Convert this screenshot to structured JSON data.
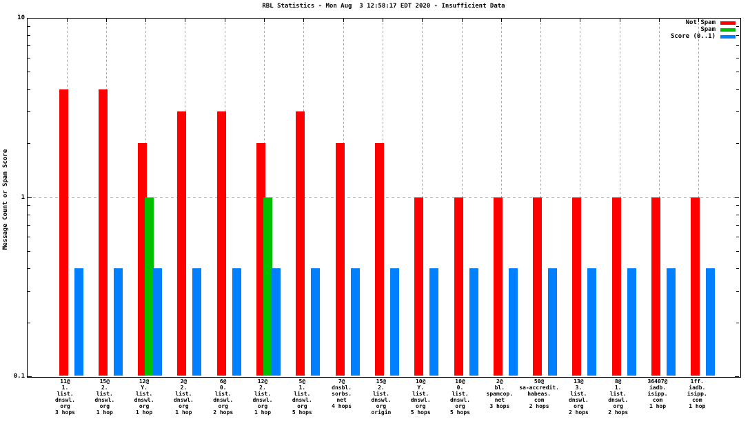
{
  "chart_data": {
    "type": "bar",
    "title": "RBL Statistics - Mon Aug  3 12:58:17 EDT 2020 - Insufficient Data",
    "ylabel": "Message Count or Spam Score",
    "xlabel": "",
    "yscale": "log",
    "ylim": [
      0.1,
      10
    ],
    "grid": true,
    "legend_position": "top-right",
    "ytics": [
      {
        "value": 0.1,
        "label": "0.1"
      },
      {
        "value": 1,
        "label": "1"
      },
      {
        "value": 10,
        "label": "10"
      }
    ],
    "yminortics": [
      0.2,
      0.3,
      0.4,
      0.5,
      0.6,
      0.7,
      0.8,
      0.9,
      2,
      3,
      4,
      5,
      6,
      7,
      8,
      9
    ],
    "legend": [
      {
        "label": "Not Spam",
        "color": "#ff0000"
      },
      {
        "label": "Spam",
        "color": "#00c000"
      },
      {
        "label": "Score (0..1)",
        "color": "#0080ff"
      }
    ],
    "categories": [
      [
        "11@",
        "1.",
        "list.",
        "dnswl.",
        "org",
        "3 hops"
      ],
      [
        "15@",
        "2.",
        "list.",
        "dnswl.",
        "org",
        "1 hop"
      ],
      [
        "12@",
        "Y.",
        "list.",
        "dnswl.",
        "org",
        "1 hop"
      ],
      [
        "2@",
        "2.",
        "list.",
        "dnswl.",
        "org",
        "1 hop"
      ],
      [
        "6@",
        "0.",
        "list.",
        "dnswl.",
        "org",
        "2 hops"
      ],
      [
        "12@",
        "2.",
        "list.",
        "dnswl.",
        "org",
        "1 hop"
      ],
      [
        "5@",
        "1.",
        "list.",
        "dnswl.",
        "org",
        "5 hops"
      ],
      [
        "7@",
        "dnsbl.",
        "sorbs.",
        "net",
        "4 hops"
      ],
      [
        "15@",
        "2.",
        "list.",
        "dnswl.",
        "org",
        "origin"
      ],
      [
        "10@",
        "Y.",
        "list.",
        "dnswl.",
        "org",
        "5 hops"
      ],
      [
        "10@",
        "0.",
        "list.",
        "dnswl.",
        "org",
        "5 hops"
      ],
      [
        "2@",
        "bl.",
        "spamcop.",
        "net",
        "3 hops"
      ],
      [
        "50@",
        "sa-accredit.",
        "habeas.",
        "com",
        "2 hops"
      ],
      [
        "13@",
        "3.",
        "list.",
        "dnswl.",
        "org",
        "2 hops"
      ],
      [
        "8@",
        "1.",
        "list.",
        "dnswl.",
        "org",
        "2 hops"
      ],
      [
        "36407@",
        "iadb.",
        "isipp.",
        "com",
        "1 hop"
      ],
      [
        "1ff.",
        "iadb.",
        "isipp.",
        "com",
        "1 hop"
      ]
    ],
    "series": [
      {
        "name": "Not Spam",
        "color": "#ff0000",
        "values": [
          4,
          4,
          2,
          3,
          3,
          2,
          3,
          2,
          2,
          1,
          1,
          1,
          1,
          1,
          1,
          1,
          1
        ]
      },
      {
        "name": "Spam",
        "color": "#00c000",
        "values": [
          0,
          0,
          1,
          0,
          0,
          1,
          0,
          0,
          0,
          0,
          0,
          0,
          0,
          0,
          0,
          0,
          0
        ]
      },
      {
        "name": "Score (0..1)",
        "color": "#0080ff",
        "values": [
          0.4,
          0.4,
          0.4,
          0.4,
          0.4,
          0.4,
          0.4,
          0.4,
          0.4,
          0.4,
          0.4,
          0.4,
          0.4,
          0.4,
          0.4,
          0.4,
          0.4
        ]
      }
    ],
    "colors": {
      "grid": "#a8a8a8",
      "axis": "#000000",
      "background": "#ffffff"
    }
  }
}
